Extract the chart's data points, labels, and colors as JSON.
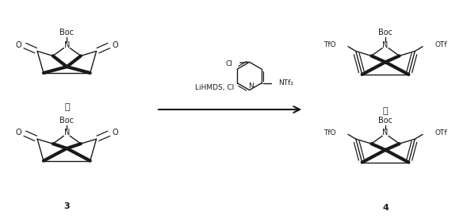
{
  "bg_color": "#ffffff",
  "line_color": "#1a1a1a",
  "text_color": "#1a1a1a",
  "fig_width": 5.89,
  "fig_height": 2.76,
  "dpi": 100,
  "boc": "Boc",
  "tfo": "TfO",
  "otf": "OTf",
  "o_label": "O",
  "n_label": "N",
  "or_label": "或",
  "label_3": "3",
  "label_4": "4",
  "reagent_text": "LiHMDS, Cl",
  "ntf2_text": "NTf₂"
}
